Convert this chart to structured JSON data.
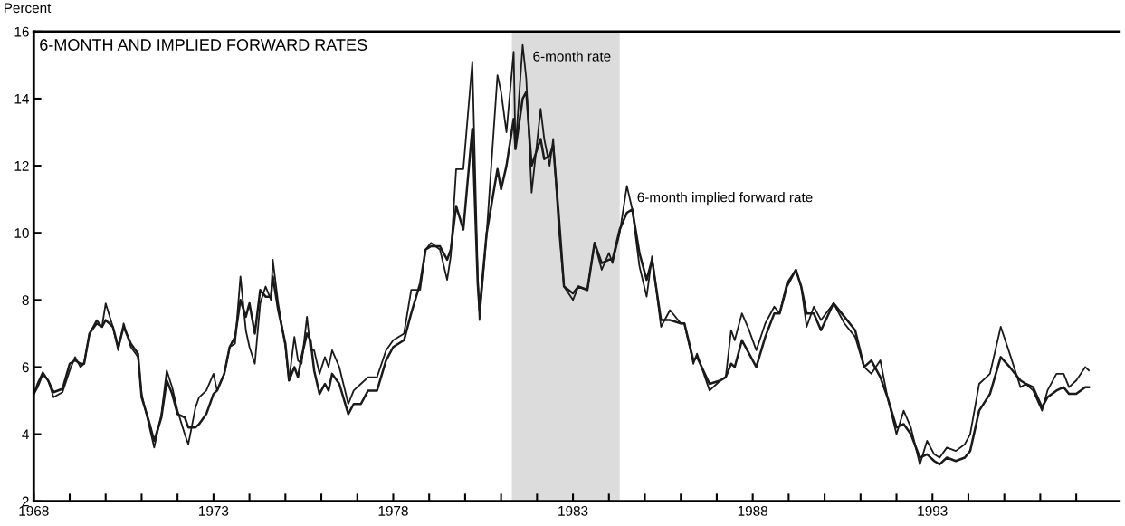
{
  "chart_data": {
    "type": "line",
    "title": "6-MONTH AND IMPLIED FORWARD RATES",
    "ylabel": "Percent",
    "x": [
      1968.0,
      1968.1,
      1968.25,
      1968.4,
      1968.55,
      1968.8,
      1969.0,
      1969.15,
      1969.3,
      1969.4,
      1969.55,
      1969.75,
      1969.9,
      1970.0,
      1970.2,
      1970.35,
      1970.5,
      1970.7,
      1970.9,
      1971.0,
      1971.2,
      1971.35,
      1971.55,
      1971.7,
      1971.85,
      1972.0,
      1972.2,
      1972.3,
      1972.5,
      1972.6,
      1972.8,
      1973.0,
      1973.1,
      1973.3,
      1973.45,
      1973.6,
      1973.75,
      1973.9,
      1974.0,
      1974.15,
      1974.3,
      1974.45,
      1974.6,
      1974.65,
      1974.8,
      1975.0,
      1975.1,
      1975.25,
      1975.35,
      1975.45,
      1975.6,
      1975.7,
      1975.8,
      1975.95,
      1976.1,
      1976.2,
      1976.3,
      1976.5,
      1976.75,
      1976.9,
      1977.1,
      1977.3,
      1977.55,
      1977.8,
      1978.0,
      1978.3,
      1978.5,
      1978.75,
      1978.9,
      1979.05,
      1979.3,
      1979.5,
      1979.6,
      1979.75,
      1979.95,
      1980.2,
      1980.35,
      1980.4,
      1980.6,
      1980.9,
      1981.0,
      1981.15,
      1981.35,
      1981.4,
      1981.6,
      1981.7,
      1981.85,
      1982.1,
      1982.2,
      1982.35,
      1982.45,
      1982.6,
      1982.75,
      1983.0,
      1983.15,
      1983.4,
      1983.6,
      1983.8,
      1984.0,
      1984.1,
      1984.3,
      1984.5,
      1984.65,
      1984.85,
      1985.05,
      1985.2,
      1985.45,
      1985.7,
      1986.0,
      1986.1,
      1986.35,
      1986.45,
      1986.8,
      1987.1,
      1987.25,
      1987.4,
      1987.5,
      1987.7,
      1987.9,
      1988.1,
      1988.35,
      1988.6,
      1988.75,
      1988.95,
      1989.2,
      1989.35,
      1989.5,
      1989.7,
      1989.9,
      1990.25,
      1990.55,
      1990.85,
      1991.1,
      1991.3,
      1991.55,
      1991.75,
      1992.0,
      1992.2,
      1992.4,
      1992.65,
      1992.85,
      1993.05,
      1993.2,
      1993.4,
      1993.65,
      1993.9,
      1994.05,
      1994.3,
      1994.6,
      1994.9,
      1995.15,
      1995.45,
      1995.6,
      1995.8,
      1996.05,
      1996.2,
      1996.45,
      1996.65,
      1996.8,
      1997.0,
      1997.25,
      1997.35
    ],
    "series": [
      {
        "color": "#1a1a1a",
        "values": [
          5.2,
          5.5,
          5.85,
          5.6,
          5.1,
          5.25,
          5.9,
          6.3,
          6.0,
          6.1,
          7.0,
          7.4,
          7.2,
          7.9,
          7.2,
          6.5,
          7.3,
          6.6,
          6.3,
          5.2,
          4.3,
          3.6,
          4.6,
          5.9,
          5.4,
          4.7,
          4.0,
          3.7,
          4.8,
          5.1,
          5.3,
          5.8,
          5.3,
          5.8,
          6.6,
          6.7,
          8.7,
          7.1,
          6.6,
          6.1,
          7.9,
          8.4,
          8.0,
          9.2,
          7.9,
          6.6,
          5.6,
          6.9,
          6.2,
          6.1,
          7.5,
          6.5,
          6.5,
          5.8,
          6.3,
          6.0,
          6.5,
          6.0,
          4.9,
          5.3,
          5.5,
          5.7,
          5.7,
          6.5,
          6.8,
          7.0,
          8.3,
          8.3,
          9.5,
          9.7,
          9.5,
          8.6,
          9.3,
          11.9,
          11.9,
          15.1,
          8.8,
          7.4,
          10.0,
          14.7,
          14.2,
          13.0,
          15.4,
          12.5,
          15.6,
          14.6,
          11.2,
          13.7,
          12.8,
          12.0,
          12.8,
          10.2,
          8.4,
          8.0,
          8.4,
          8.3,
          9.7,
          8.9,
          9.4,
          9.1,
          10.0,
          11.4,
          10.7,
          9.0,
          8.1,
          9.3,
          7.2,
          7.7,
          7.3,
          7.3,
          6.1,
          6.4,
          5.3,
          5.6,
          5.7,
          7.1,
          6.8,
          7.6,
          7.1,
          6.5,
          7.3,
          7.8,
          7.6,
          8.5,
          8.9,
          8.4,
          7.2,
          7.8,
          7.4,
          7.9,
          7.3,
          6.9,
          6.0,
          5.8,
          6.2,
          5.1,
          4.0,
          4.7,
          4.2,
          3.1,
          3.8,
          3.4,
          3.3,
          3.6,
          3.5,
          3.7,
          4.0,
          5.5,
          5.8,
          7.2,
          6.4,
          5.4,
          5.5,
          5.3,
          4.7,
          5.3,
          5.8,
          5.8,
          5.4,
          5.6,
          6.0,
          5.9
        ]
      },
      {
        "color": "#1a1a1a",
        "values": [
          5.2,
          5.4,
          5.8,
          5.6,
          5.25,
          5.35,
          6.1,
          6.2,
          6.1,
          6.1,
          7.0,
          7.3,
          7.2,
          7.4,
          7.2,
          6.6,
          7.2,
          6.7,
          6.4,
          5.1,
          4.4,
          3.8,
          4.5,
          5.6,
          5.2,
          4.6,
          4.5,
          4.2,
          4.2,
          4.3,
          4.6,
          5.2,
          5.3,
          5.8,
          6.6,
          6.9,
          8.0,
          7.5,
          7.9,
          7.0,
          8.3,
          8.1,
          8.1,
          8.7,
          7.7,
          6.7,
          5.6,
          6.0,
          5.7,
          6.3,
          7.0,
          6.8,
          5.9,
          5.2,
          5.5,
          5.3,
          5.8,
          5.5,
          4.6,
          4.9,
          4.9,
          5.3,
          5.3,
          6.2,
          6.6,
          6.8,
          7.6,
          8.5,
          9.5,
          9.6,
          9.6,
          9.2,
          9.5,
          10.8,
          10.1,
          13.1,
          8.5,
          7.7,
          10.0,
          11.9,
          11.3,
          12.0,
          13.4,
          12.5,
          14.0,
          14.2,
          12.0,
          12.8,
          12.2,
          12.3,
          12.6,
          10.6,
          8.4,
          8.2,
          8.4,
          8.3,
          9.7,
          9.1,
          9.2,
          9.2,
          10.1,
          10.6,
          10.7,
          9.4,
          8.6,
          9.2,
          7.4,
          7.4,
          7.3,
          7.3,
          6.2,
          6.3,
          5.5,
          5.6,
          5.7,
          6.1,
          6.0,
          6.8,
          6.4,
          6.0,
          6.9,
          7.6,
          7.6,
          8.4,
          8.9,
          8.4,
          7.6,
          7.6,
          7.1,
          7.9,
          7.5,
          7.1,
          6.0,
          6.2,
          5.7,
          5.1,
          4.2,
          4.3,
          4.0,
          3.3,
          3.4,
          3.2,
          3.1,
          3.3,
          3.2,
          3.3,
          3.5,
          4.7,
          5.2,
          6.3,
          6.0,
          5.6,
          5.5,
          5.4,
          4.8,
          5.1,
          5.3,
          5.4,
          5.2,
          5.2,
          5.4,
          5.4
        ]
      }
    ],
    "annotations": [
      {
        "text": "6-month rate",
        "x": 1981.6,
        "y": 15.6
      },
      {
        "text": "6-month implied forward rate",
        "x": 1984.5,
        "y": 11.4
      }
    ],
    "bands": [
      {
        "axis": "x",
        "from": 1981.3,
        "to": 1984.3,
        "color": "#dcdcdc"
      }
    ],
    "xlim": [
      1968,
      1998.2
    ],
    "xticks": [
      1968,
      {
        "value": 1969,
        "label": null
      },
      {
        "value": 1970,
        "label": null
      },
      {
        "value": 1971,
        "label": null
      },
      {
        "value": 1972,
        "label": null
      },
      1973,
      {
        "value": 1974,
        "label": null
      },
      {
        "value": 1975,
        "label": null
      },
      {
        "value": 1976,
        "label": null
      },
      {
        "value": 1977,
        "label": null
      },
      1978,
      {
        "value": 1979,
        "label": null
      },
      {
        "value": 1980,
        "label": null
      },
      {
        "value": 1981,
        "label": null
      },
      {
        "value": 1982,
        "label": null
      },
      1983,
      {
        "value": 1984,
        "label": null
      },
      {
        "value": 1985,
        "label": null
      },
      {
        "value": 1986,
        "label": null
      },
      {
        "value": 1987,
        "label": null
      },
      1988,
      {
        "value": 1989,
        "label": null
      },
      {
        "value": 1990,
        "label": null
      },
      {
        "value": 1991,
        "label": null
      },
      {
        "value": 1992,
        "label": null
      },
      1993,
      {
        "value": 1994,
        "label": null
      },
      {
        "value": 1995,
        "label": null
      },
      {
        "value": 1996,
        "label": null
      },
      {
        "value": 1997,
        "label": null
      }
    ],
    "ylim": [
      2,
      16
    ],
    "yticks": [
      2,
      4,
      6,
      8,
      10,
      12,
      14,
      16
    ],
    "grid": false,
    "legend": false,
    "marker": "none",
    "line_style": "solid"
  }
}
